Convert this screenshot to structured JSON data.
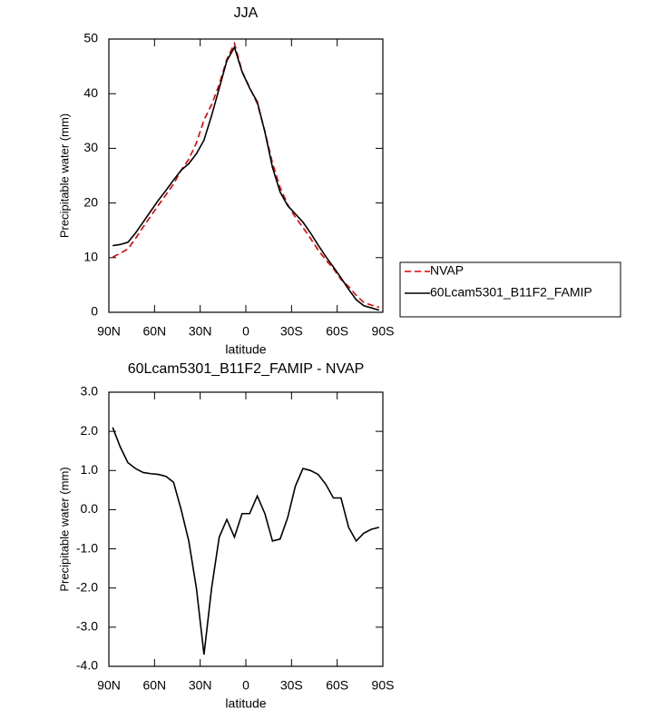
{
  "chart_data": [
    {
      "type": "line",
      "title": "JJA",
      "xlabel": "latitude",
      "ylabel": "Precipitable water (mm)",
      "x": [
        87.5,
        82.5,
        77.5,
        72.5,
        67.5,
        62.5,
        57.5,
        52.5,
        47.5,
        42.5,
        37.5,
        32.5,
        27.5,
        22.5,
        17.5,
        12.5,
        7.5,
        2.5,
        -2.5,
        -7.5,
        -12.5,
        -17.5,
        -22.5,
        -27.5,
        -32.5,
        -37.5,
        -42.5,
        -47.5,
        -52.5,
        -57.5,
        -62.5,
        -67.5,
        -72.5,
        -77.5,
        -82.5,
        -87.5
      ],
      "series": [
        {
          "name": "NVAP",
          "color": "#e00000",
          "line_style": "dashed",
          "values": [
            10.1,
            10.8,
            11.6,
            13.5,
            15.6,
            17.6,
            19.6,
            21.5,
            23.5,
            26.0,
            28.0,
            31.0,
            35.2,
            38.0,
            41.7,
            46.3,
            49.2,
            44.1,
            41.1,
            38.2,
            33.1,
            27.3,
            22.8,
            19.7,
            17.4,
            15.5,
            13.5,
            11.4,
            9.6,
            8.0,
            6.0,
            4.7,
            3.1,
            1.8,
            1.3,
            0.9
          ]
        },
        {
          "name": "60Lcam5301_B11F2_FAMIP",
          "color": "#000000",
          "line_style": "solid",
          "values": [
            12.2,
            12.4,
            12.8,
            14.5,
            16.5,
            18.5,
            20.5,
            22.3,
            24.2,
            26.0,
            27.2,
            29.0,
            31.5,
            36.0,
            41.0,
            46.0,
            48.5,
            44.0,
            41.0,
            38.5,
            33.0,
            26.5,
            22.0,
            19.5,
            18.0,
            16.5,
            14.5,
            12.3,
            10.2,
            8.3,
            6.3,
            4.2,
            2.3,
            1.2,
            0.8,
            0.4
          ]
        }
      ],
      "xlim": [
        90,
        -90
      ],
      "xticks": [
        {
          "value": 90,
          "label": "90N"
        },
        {
          "value": 60,
          "label": "60N"
        },
        {
          "value": 30,
          "label": "30N"
        },
        0,
        {
          "value": -30,
          "label": "30S"
        },
        {
          "value": -60,
          "label": "60S"
        },
        {
          "value": -90,
          "label": "90S"
        }
      ],
      "ylim": [
        0,
        50
      ],
      "yticks": [
        0,
        10,
        20,
        30,
        40,
        50
      ],
      "legend": "right"
    },
    {
      "type": "line",
      "title": "60Lcam5301_B11F2_FAMIP - NVAP",
      "xlabel": "latitude",
      "ylabel": "Precipitable water (mm)",
      "x": [
        87.5,
        82.5,
        77.5,
        72.5,
        67.5,
        62.5,
        57.5,
        52.5,
        47.5,
        42.5,
        37.5,
        32.5,
        27.5,
        22.5,
        17.5,
        12.5,
        7.5,
        2.5,
        -2.5,
        -7.5,
        -12.5,
        -17.5,
        -22.5,
        -27.5,
        -32.5,
        -37.5,
        -42.5,
        -47.5,
        -52.5,
        -57.5,
        -62.5,
        -67.5,
        -72.5,
        -77.5,
        -82.5,
        -87.5
      ],
      "values": [
        2.1,
        1.6,
        1.2,
        1.05,
        0.95,
        0.92,
        0.9,
        0.85,
        0.7,
        0.0,
        -0.8,
        -2.0,
        -3.7,
        -2.0,
        -0.7,
        -0.25,
        -0.7,
        -0.1,
        -0.1,
        0.35,
        -0.1,
        -0.8,
        -0.75,
        -0.2,
        0.6,
        1.05,
        1.0,
        0.9,
        0.65,
        0.3,
        0.3,
        -0.45,
        -0.8,
        -0.6,
        -0.5,
        -0.45
      ],
      "color": "#000000",
      "xlim": [
        90,
        -90
      ],
      "xticks": [
        {
          "value": 90,
          "label": "90N"
        },
        {
          "value": 60,
          "label": "60N"
        },
        {
          "value": 30,
          "label": "30N"
        },
        0,
        {
          "value": -30,
          "label": "30S"
        },
        {
          "value": -60,
          "label": "60S"
        },
        {
          "value": -90,
          "label": "90S"
        }
      ],
      "ylim": [
        -4,
        3
      ],
      "yticks": [
        {
          "value": -4,
          "label": "-4.0"
        },
        {
          "value": -3,
          "label": "-3.0"
        },
        {
          "value": -2,
          "label": "-2.0"
        },
        {
          "value": -1,
          "label": "-1.0"
        },
        {
          "value": 0,
          "label": "0.0"
        },
        {
          "value": 1,
          "label": "1.0"
        },
        {
          "value": 2,
          "label": "2.0"
        },
        {
          "value": 3,
          "label": "3.0"
        }
      ]
    }
  ]
}
